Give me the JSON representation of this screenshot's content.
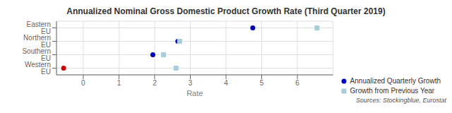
{
  "chart_data": {
    "type": "scatter",
    "title": "Annualized Nominal Gross Domestic Product Growth Rate (Third Quarter 2019)",
    "xlabel": "Rate",
    "source": "Sources: Stockingblue, Eurostat",
    "categories": [
      "Eastern EU",
      "Northern EU",
      "Southern EU",
      "Western EU"
    ],
    "series": [
      {
        "name": "Annualized Quarterly Growth",
        "color": "#0000bb",
        "colors": [
          "#0000bb",
          "#0000bb",
          "#0000bb",
          "#cc0000"
        ],
        "marker": "circle",
        "values": [
          4.75,
          2.65,
          1.95,
          -0.55
        ]
      },
      {
        "name": "Growth from Previous Year",
        "color": "#a8ccd8",
        "marker": "square",
        "values": [
          6.55,
          2.7,
          2.25,
          2.6
        ]
      }
    ],
    "xlim": [
      -0.75,
      7.0
    ],
    "xticks": [
      0,
      1,
      2,
      3,
      4,
      5,
      6
    ],
    "grid": true,
    "legend": "lower right"
  }
}
